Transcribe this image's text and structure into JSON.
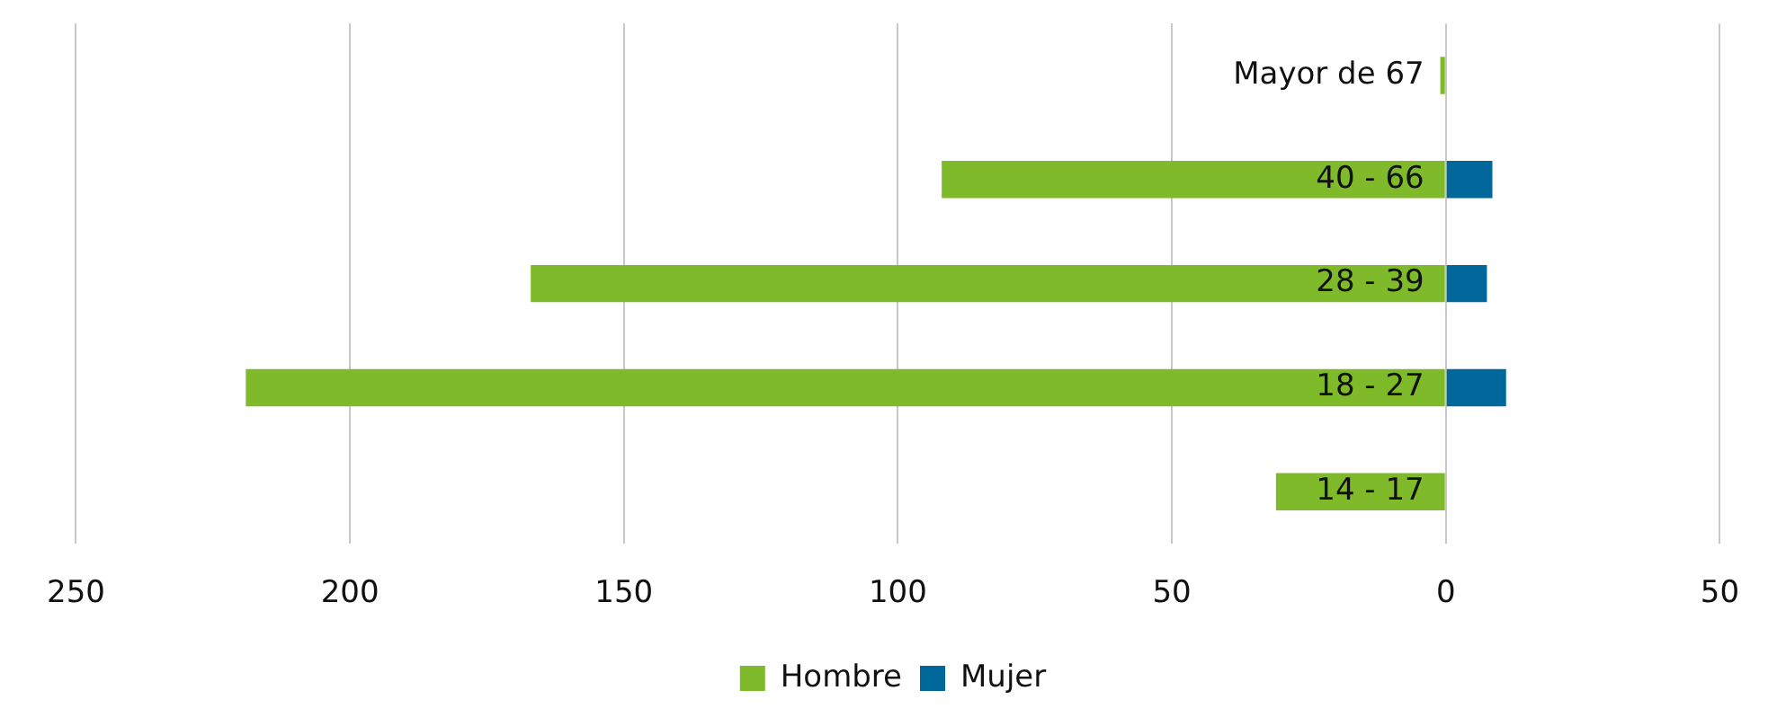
{
  "chart_data": {
    "type": "bar",
    "orientation": "horizontal",
    "stacked": true,
    "categories": [
      "Mayor de 67",
      "40 - 66",
      "28 - 39",
      "18 - 27",
      "14 - 17"
    ],
    "series": [
      {
        "name": "Hombre",
        "color": "#7fba2a",
        "values": [
          -1,
          -92,
          -167,
          -219,
          -31
        ]
      },
      {
        "name": "Mujer",
        "color": "#00679a",
        "values": [
          0,
          8.5,
          7.5,
          11,
          0
        ]
      }
    ],
    "xlim": [
      -250,
      50
    ],
    "xticks": [
      {
        "value": -250,
        "label": "250"
      },
      {
        "value": -200,
        "label": "200"
      },
      {
        "value": -150,
        "label": "150"
      },
      {
        "value": -100,
        "label": "100"
      },
      {
        "value": -50,
        "label": "50"
      },
      0,
      50
    ],
    "grid": "x",
    "legend": "bottom"
  }
}
